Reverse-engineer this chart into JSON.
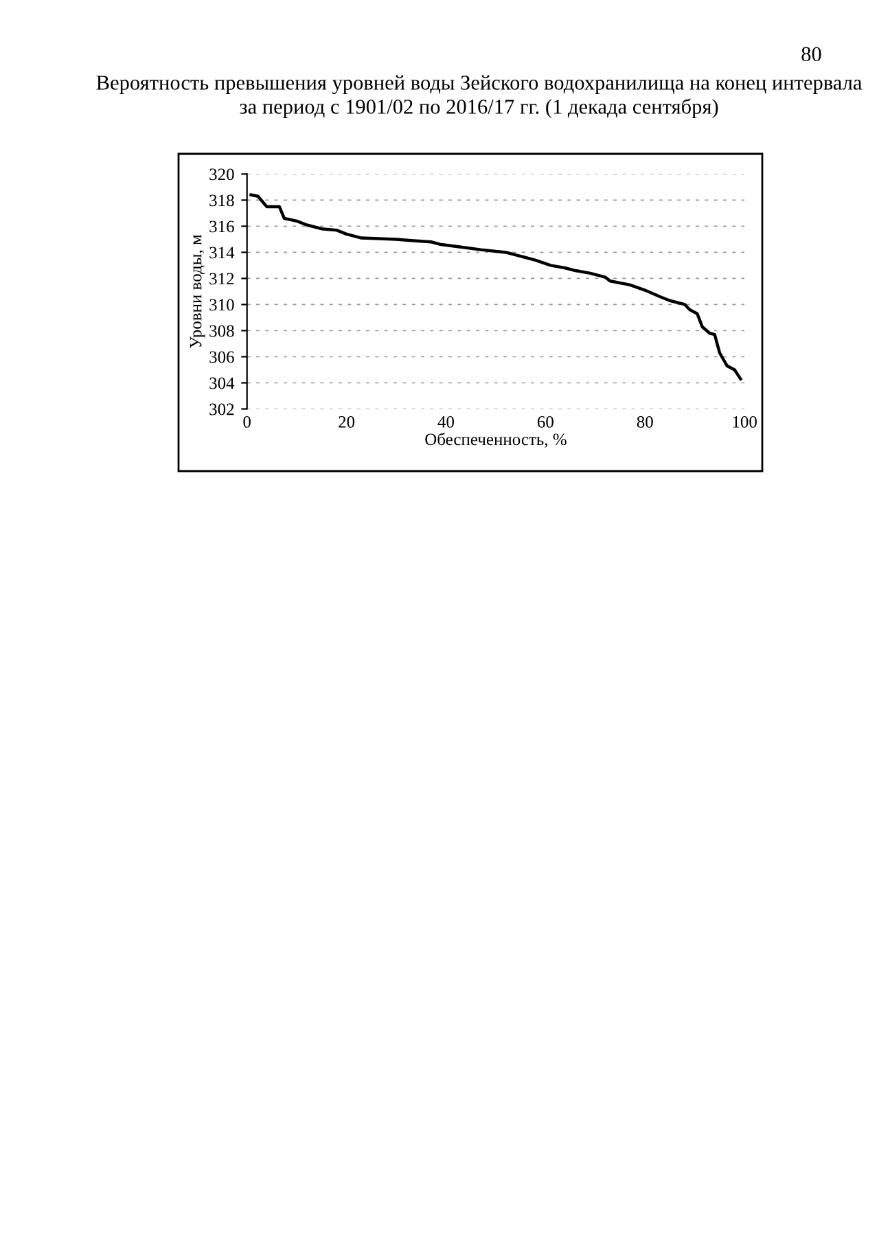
{
  "chart_data": {
    "type": "line",
    "title": "Вероятность превышения уровней воды Зейского водохранилища на конец интервала\nза период с 1901/02 по 2016/17 гг. (1 декада сентября)",
    "xlabel": "Обеспеченность, %",
    "ylabel": "Уровни воды, м",
    "annotations": [
      "80"
    ],
    "series": [
      {
        "color": "#000000",
        "x": [
          0.8,
          2.2,
          3.3,
          4,
          6.5,
          7.5,
          10,
          12,
          15,
          18,
          20,
          23,
          30,
          33,
          37,
          39,
          43,
          47,
          52,
          55,
          58,
          61,
          64,
          66,
          69,
          72,
          73,
          77,
          80,
          83,
          85,
          88,
          89,
          90.5,
          91.5,
          93,
          94,
          95,
          96.5,
          98,
          99.2
        ],
        "values": [
          318.4,
          318.3,
          317.8,
          317.5,
          317.5,
          316.6,
          316.4,
          316.1,
          315.8,
          315.7,
          315.4,
          315.1,
          315.0,
          314.9,
          314.8,
          314.6,
          314.4,
          314.2,
          314.0,
          313.7,
          313.4,
          313.0,
          312.8,
          312.6,
          312.4,
          312.1,
          311.8,
          311.5,
          311.1,
          310.6,
          310.3,
          310.0,
          309.6,
          309.3,
          308.3,
          307.8,
          307.7,
          306.3,
          305.3,
          305.0,
          304.3
        ]
      }
    ],
    "xlim": [
      0,
      100
    ],
    "xticks": [
      0,
      20,
      40,
      60,
      80,
      100
    ],
    "ylim": [
      302,
      320
    ],
    "yticks": [
      302,
      304,
      306,
      308,
      310,
      312,
      314,
      316,
      318,
      320
    ],
    "grid": "y",
    "legend": false,
    "marker": "none",
    "line_style": "solid"
  }
}
